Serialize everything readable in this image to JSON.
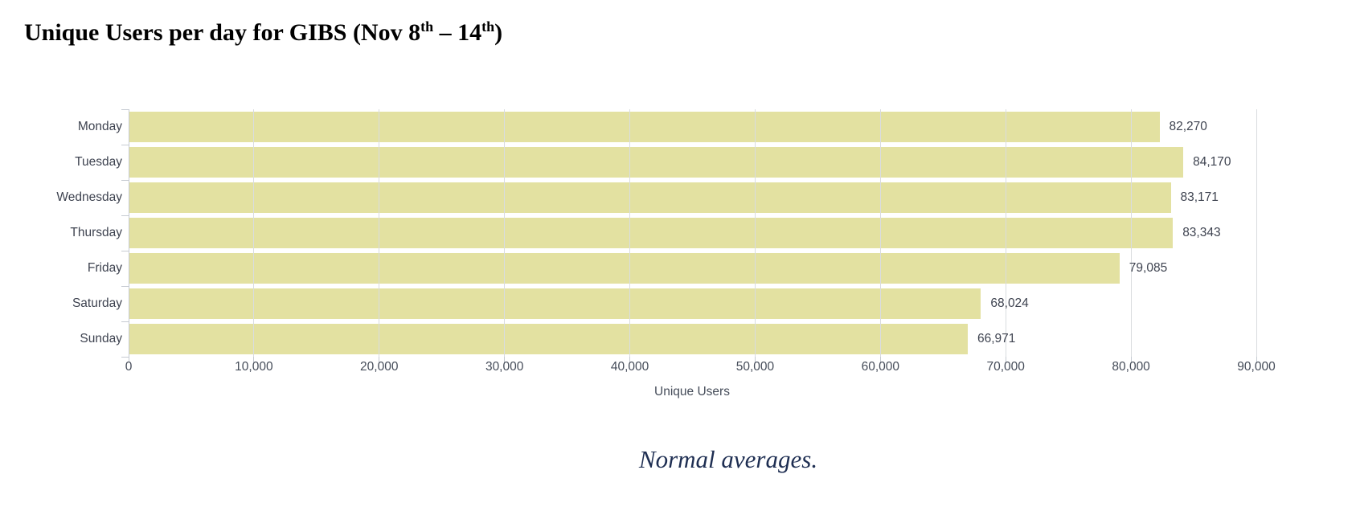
{
  "title": {
    "part1": "Unique Users per day for GIBS (Nov 8",
    "sup1": "th",
    "part2": " – 14",
    "sup2": "th",
    "part3": ")"
  },
  "caption": "Normal averages.",
  "chart_data": {
    "type": "bar",
    "orientation": "horizontal",
    "title": "Unique Users per day for GIBS (Nov 8th – 14th)",
    "xlabel": "Unique Users",
    "ylabel": "",
    "categories": [
      "Monday",
      "Tuesday",
      "Wednesday",
      "Thursday",
      "Friday",
      "Saturday",
      "Sunday"
    ],
    "values": [
      82270,
      84170,
      83171,
      83343,
      79085,
      68024,
      66971
    ],
    "value_labels": [
      "82,270",
      "84,170",
      "83,171",
      "83,343",
      "79,085",
      "68,024",
      "66,971"
    ],
    "xlim": [
      0,
      90000
    ],
    "xticks": [
      0,
      10000,
      20000,
      30000,
      40000,
      50000,
      60000,
      70000,
      80000,
      90000
    ],
    "xtick_labels": [
      "0",
      "10,000",
      "20,000",
      "30,000",
      "40,000",
      "50,000",
      "60,000",
      "70,000",
      "80,000",
      "90,000"
    ],
    "grid": true,
    "legend": false,
    "colors": {
      "bar": "#e3e1a1",
      "gridline": "#d9dcdf",
      "axis": "#c6cbd2",
      "tick_label": "#454c59",
      "category_label": "#3e4350",
      "value_label": "#3e4350",
      "title": "#000000",
      "caption": "#1e2e52"
    }
  }
}
